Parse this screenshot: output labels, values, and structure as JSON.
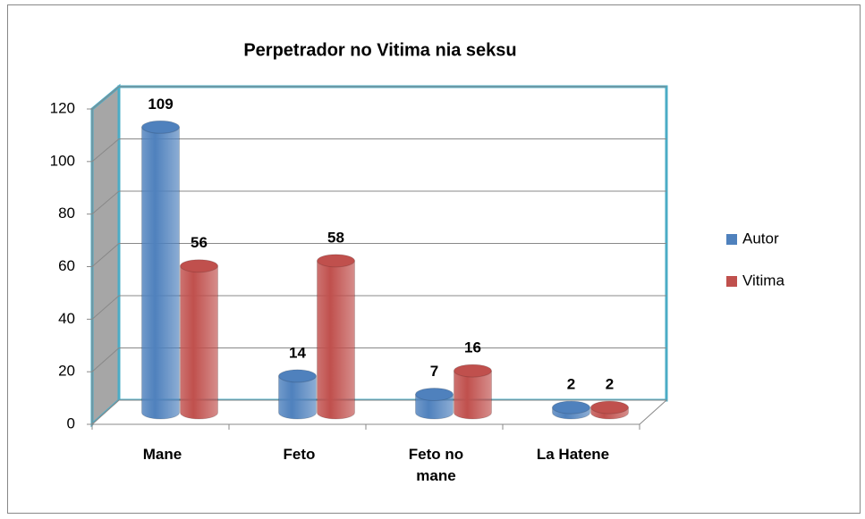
{
  "chart_data": {
    "type": "bar3d",
    "title": "Perpetrador no Vitima nia seksu",
    "categories": [
      "Mane",
      "Feto",
      "Feto no mane",
      "La Hatene"
    ],
    "series": [
      {
        "name": "Autor",
        "color": "#4f81bd",
        "values": [
          109,
          14,
          7,
          2
        ]
      },
      {
        "name": "Vitima",
        "color": "#c0504d",
        "values": [
          56,
          58,
          16,
          2
        ]
      }
    ],
    "ylim": [
      0,
      120
    ],
    "yticks": [
      0,
      20,
      40,
      60,
      80,
      100,
      120
    ],
    "grid": true,
    "legend": "right"
  }
}
